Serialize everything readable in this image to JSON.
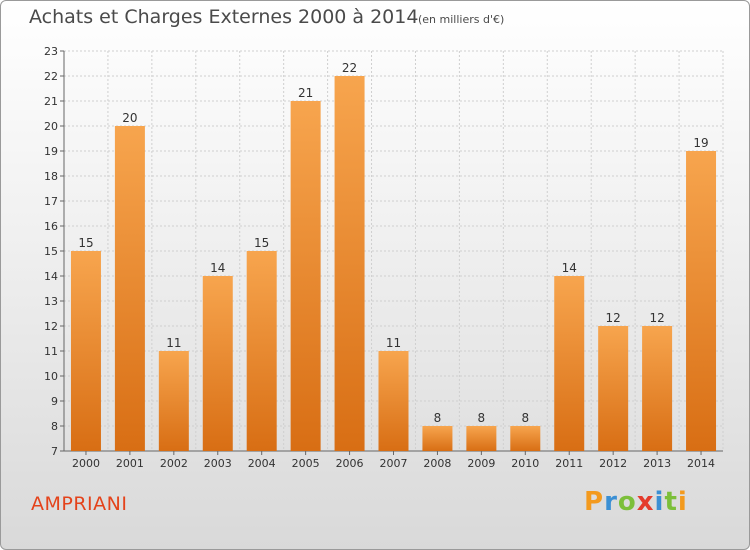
{
  "title": "Achats et Charges Externes 2000 à 2014",
  "subtitle": "(en milliers d'€)",
  "commune": "AMPRIANI",
  "logo": {
    "letters": [
      "P",
      "r",
      "o",
      "x",
      "i",
      "t",
      "i"
    ]
  },
  "colors": {
    "bar_light": "#f7a54e",
    "bar_dark": "#d86e14",
    "title": "#4a4a4a",
    "commune": "#e4431b"
  },
  "chart_data": {
    "type": "bar",
    "categories": [
      "2000",
      "2001",
      "2002",
      "2003",
      "2004",
      "2005",
      "2006",
      "2007",
      "2008",
      "2009",
      "2010",
      "2011",
      "2012",
      "2013",
      "2014"
    ],
    "values": [
      15,
      20,
      11,
      14,
      15,
      21,
      22,
      11,
      8,
      8,
      8,
      14,
      12,
      12,
      19
    ],
    "ylim": [
      7,
      23
    ],
    "yticks": [
      7,
      8,
      9,
      10,
      11,
      12,
      13,
      14,
      15,
      16,
      17,
      18,
      19,
      20,
      21,
      22,
      23
    ],
    "grid": true,
    "data_labels": true
  }
}
